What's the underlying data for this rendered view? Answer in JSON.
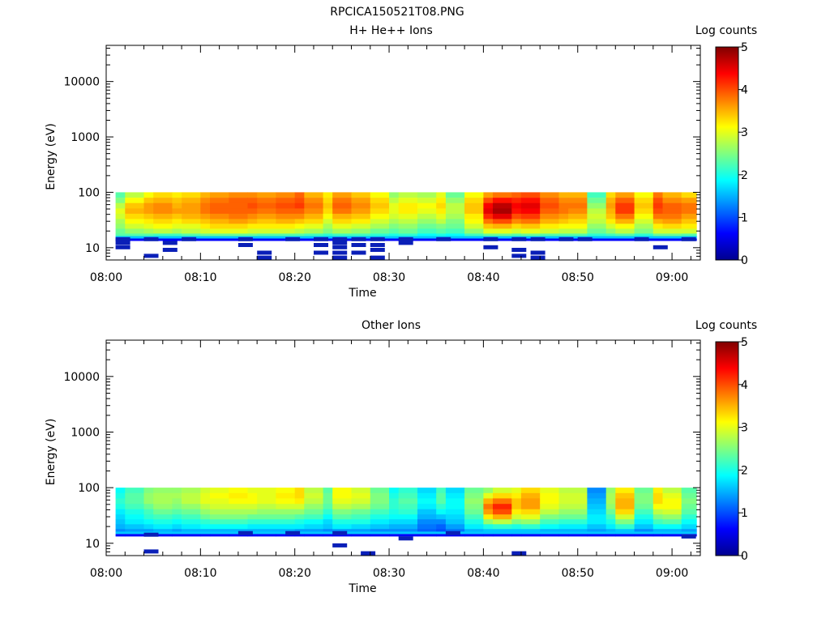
{
  "title": "RPCICA150521T08.PNG",
  "chart_data": [
    {
      "type": "heatmap",
      "title": "H+ He++ Ions",
      "xlabel": "Time",
      "ylabel": "Energy (eV)",
      "y_scale": "log",
      "ylim": [
        6,
        45000
      ],
      "y_ticks": [
        "10",
        "100",
        "1000",
        "10000"
      ],
      "y_tick_values": [
        10,
        100,
        1000,
        10000
      ],
      "xlim": [
        "08:00",
        "09:03"
      ],
      "x_ticks": [
        "08:00",
        "08:10",
        "08:20",
        "08:30",
        "08:40",
        "08:50",
        "09:00"
      ],
      "x_tick_minutes": [
        0,
        10,
        20,
        30,
        40,
        50,
        60
      ],
      "colorbar": {
        "label": "Log counts",
        "range": [
          0,
          5
        ],
        "ticks": [
          "0",
          "1",
          "2",
          "3",
          "4",
          "5"
        ]
      },
      "energy_bands_eV": [
        100,
        80,
        64,
        51,
        41,
        33,
        27,
        22,
        18
      ],
      "time_columns_min": [
        "08:01",
        "08:02",
        "08:04",
        "08:05",
        "08:07",
        "08:08",
        "08:10",
        "08:11",
        "08:13",
        "08:15",
        "08:16",
        "08:18",
        "08:20",
        "08:21",
        "08:23",
        "08:24",
        "08:26",
        "08:28",
        "08:30",
        "08:31",
        "08:33",
        "08:35",
        "08:36",
        "08:38",
        "08:40",
        "08:41",
        "08:43",
        "08:44",
        "08:46",
        "08:48",
        "08:49",
        "08:51",
        "08:53",
        "08:54",
        "08:56",
        "08:58",
        "08:59",
        "09:01"
      ],
      "log_counts": [
        [
          2.3,
          2.5,
          2.8,
          3.0,
          2.9,
          2.7,
          2.6,
          2.4,
          2.3
        ],
        [
          2.8,
          3.1,
          3.4,
          3.5,
          3.3,
          3.1,
          2.9,
          2.6,
          2.3
        ],
        [
          3.1,
          3.4,
          3.6,
          3.6,
          3.4,
          3.2,
          3.0,
          2.7,
          2.3
        ],
        [
          3.3,
          3.5,
          3.7,
          3.7,
          3.5,
          3.3,
          3.1,
          2.8,
          2.2
        ],
        [
          3.2,
          3.4,
          3.5,
          3.6,
          3.4,
          3.2,
          3.0,
          2.7,
          2.2
        ],
        [
          3.3,
          3.5,
          3.6,
          3.6,
          3.5,
          3.3,
          3.0,
          2.8,
          2.3
        ],
        [
          3.5,
          3.7,
          3.8,
          3.8,
          3.6,
          3.4,
          3.2,
          2.9,
          2.4
        ],
        [
          3.6,
          3.8,
          3.9,
          3.9,
          3.7,
          3.5,
          3.3,
          3.0,
          2.4
        ],
        [
          3.7,
          3.9,
          3.9,
          3.9,
          3.8,
          3.6,
          3.3,
          3.0,
          2.4
        ],
        [
          3.7,
          3.9,
          4.0,
          3.9,
          3.7,
          3.5,
          3.2,
          2.9,
          2.4
        ],
        [
          3.6,
          3.8,
          3.9,
          3.8,
          3.6,
          3.4,
          3.2,
          2.9,
          2.3
        ],
        [
          3.7,
          3.9,
          4.0,
          3.9,
          3.7,
          3.5,
          3.2,
          2.9,
          2.3
        ],
        [
          3.9,
          4.0,
          4.1,
          3.9,
          3.7,
          3.4,
          3.1,
          2.8,
          2.3
        ],
        [
          3.5,
          3.7,
          3.8,
          3.7,
          3.5,
          3.3,
          3.0,
          2.7,
          2.2
        ],
        [
          3.2,
          3.3,
          3.4,
          3.3,
          3.1,
          2.9,
          2.7,
          2.5,
          2.1
        ],
        [
          3.6,
          3.8,
          3.9,
          3.8,
          3.5,
          3.3,
          3.0,
          2.7,
          2.2
        ],
        [
          3.4,
          3.6,
          3.7,
          3.6,
          3.4,
          3.2,
          2.9,
          2.6,
          2.2
        ],
        [
          3.1,
          3.3,
          3.4,
          3.3,
          3.1,
          2.9,
          2.7,
          2.4,
          2.1
        ],
        [
          2.6,
          2.8,
          3.0,
          3.0,
          2.9,
          2.7,
          2.5,
          2.3,
          2.0
        ],
        [
          2.8,
          3.0,
          3.2,
          3.2,
          3.0,
          2.8,
          2.6,
          2.4,
          2.1
        ],
        [
          2.7,
          2.9,
          3.1,
          3.0,
          2.8,
          2.6,
          2.4,
          2.2,
          1.9
        ],
        [
          3.0,
          3.2,
          3.3,
          3.2,
          3.0,
          2.8,
          2.5,
          2.3,
          2.0
        ],
        [
          2.4,
          2.6,
          2.8,
          2.8,
          2.7,
          2.5,
          2.4,
          2.2,
          1.9
        ],
        [
          3.1,
          3.3,
          3.4,
          3.4,
          3.2,
          3.1,
          2.9,
          2.6,
          2.2
        ],
        [
          3.6,
          4.0,
          4.4,
          4.5,
          4.2,
          3.8,
          3.4,
          3.0,
          2.4
        ],
        [
          3.8,
          4.3,
          4.7,
          4.8,
          4.5,
          4.0,
          3.5,
          3.0,
          2.4
        ],
        [
          3.9,
          4.2,
          4.4,
          4.3,
          4.0,
          3.7,
          3.3,
          2.9,
          2.3
        ],
        [
          4.0,
          4.3,
          4.5,
          4.4,
          4.1,
          3.8,
          3.4,
          3.0,
          2.4
        ],
        [
          3.7,
          3.9,
          4.0,
          3.9,
          3.7,
          3.5,
          3.2,
          2.9,
          2.3
        ],
        [
          3.5,
          3.7,
          3.8,
          3.8,
          3.6,
          3.4,
          3.1,
          2.8,
          2.3
        ],
        [
          3.5,
          3.7,
          3.8,
          3.7,
          3.5,
          3.3,
          3.1,
          2.8,
          2.3
        ],
        [
          2.2,
          2.4,
          2.6,
          2.8,
          2.9,
          2.8,
          2.6,
          2.4,
          2.1
        ],
        [
          3.3,
          3.5,
          3.6,
          3.5,
          3.4,
          3.2,
          2.9,
          2.6,
          2.2
        ],
        [
          3.6,
          3.9,
          4.1,
          4.1,
          3.8,
          3.5,
          3.1,
          2.8,
          2.3
        ],
        [
          3.1,
          3.3,
          3.4,
          3.3,
          3.1,
          2.9,
          2.7,
          2.5,
          2.1
        ],
        [
          3.8,
          4.0,
          4.1,
          4.0,
          3.8,
          3.5,
          3.2,
          2.9,
          2.4
        ],
        [
          3.5,
          3.7,
          3.9,
          3.9,
          3.8,
          3.6,
          3.3,
          2.9,
          2.4
        ],
        [
          3.3,
          3.6,
          3.8,
          3.8,
          3.6,
          3.4,
          3.2,
          2.9,
          2.3
        ]
      ],
      "low_energy_patches": [
        {
          "t": "08:01",
          "e": [
            14,
            12,
            10
          ]
        },
        {
          "t": "08:04",
          "e": [
            14,
            7
          ]
        },
        {
          "t": "08:06",
          "e": [
            12,
            9
          ]
        },
        {
          "t": "08:08",
          "e": [
            14
          ]
        },
        {
          "t": "08:14",
          "e": [
            14,
            11
          ]
        },
        {
          "t": "08:16",
          "e": [
            8,
            6.5
          ]
        },
        {
          "t": "08:19",
          "e": [
            14
          ]
        },
        {
          "t": "08:22",
          "e": [
            14,
            11,
            8
          ]
        },
        {
          "t": "08:24",
          "e": [
            14,
            12,
            10,
            8,
            6.5
          ]
        },
        {
          "t": "08:26",
          "e": [
            14,
            11,
            8
          ]
        },
        {
          "t": "08:28",
          "e": [
            14,
            11,
            9,
            6.5
          ]
        },
        {
          "t": "08:31",
          "e": [
            14,
            12
          ]
        },
        {
          "t": "08:35",
          "e": [
            14
          ]
        },
        {
          "t": "08:40",
          "e": [
            14,
            10
          ]
        },
        {
          "t": "08:43",
          "e": [
            14,
            9,
            7
          ]
        },
        {
          "t": "08:45",
          "e": [
            14,
            8,
            6.5
          ]
        },
        {
          "t": "08:48",
          "e": [
            14
          ]
        },
        {
          "t": "08:50",
          "e": [
            14
          ]
        },
        {
          "t": "08:56",
          "e": [
            14
          ]
        },
        {
          "t": "08:58",
          "e": [
            10
          ]
        },
        {
          "t": "09:01",
          "e": [
            14
          ]
        }
      ]
    },
    {
      "type": "heatmap",
      "title": "Other Ions",
      "xlabel": "Time",
      "ylabel": "Energy (eV)",
      "y_scale": "log",
      "ylim": [
        6,
        45000
      ],
      "y_ticks": [
        "10",
        "100",
        "1000",
        "10000"
      ],
      "y_tick_values": [
        10,
        100,
        1000,
        10000
      ],
      "xlim": [
        "08:00",
        "09:03"
      ],
      "x_ticks": [
        "08:00",
        "08:10",
        "08:20",
        "08:30",
        "08:40",
        "08:50",
        "09:00"
      ],
      "x_tick_minutes": [
        0,
        10,
        20,
        30,
        40,
        50,
        60
      ],
      "colorbar": {
        "label": "Log counts",
        "range": [
          0,
          5
        ],
        "ticks": [
          "0",
          "1",
          "2",
          "3",
          "4",
          "5"
        ]
      },
      "energy_bands_eV": [
        100,
        80,
        64,
        51,
        41,
        33,
        27,
        22,
        18
      ],
      "time_columns_min": [
        "08:01",
        "08:02",
        "08:04",
        "08:05",
        "08:07",
        "08:08",
        "08:10",
        "08:11",
        "08:13",
        "08:15",
        "08:16",
        "08:18",
        "08:20",
        "08:21",
        "08:23",
        "08:24",
        "08:26",
        "08:28",
        "08:30",
        "08:31",
        "08:33",
        "08:35",
        "08:36",
        "08:38",
        "08:40",
        "08:41",
        "08:43",
        "08:44",
        "08:46",
        "08:48",
        "08:49",
        "08:51",
        "08:53",
        "08:54",
        "08:56",
        "08:58",
        "08:59",
        "09:01"
      ],
      "log_counts": [
        [
          1.9,
          2.0,
          2.1,
          2.0,
          1.8,
          1.7,
          1.6,
          1.5,
          1.3
        ],
        [
          2.2,
          2.3,
          2.3,
          2.2,
          2.0,
          1.9,
          1.8,
          1.6,
          1.4
        ],
        [
          2.5,
          2.6,
          2.6,
          2.4,
          2.2,
          2.1,
          1.9,
          1.7,
          1.4
        ],
        [
          2.6,
          2.7,
          2.7,
          2.6,
          2.4,
          2.2,
          2.0,
          1.8,
          1.5
        ],
        [
          2.6,
          2.7,
          2.6,
          2.5,
          2.3,
          2.1,
          1.9,
          1.7,
          1.4
        ],
        [
          2.7,
          2.8,
          2.8,
          2.6,
          2.4,
          2.2,
          2.0,
          1.8,
          1.5
        ],
        [
          2.9,
          3.0,
          3.0,
          2.8,
          2.6,
          2.4,
          2.1,
          1.9,
          1.5
        ],
        [
          3.0,
          3.1,
          3.0,
          2.9,
          2.7,
          2.5,
          2.2,
          1.9,
          1.5
        ],
        [
          3.1,
          3.2,
          3.1,
          2.9,
          2.7,
          2.5,
          2.2,
          1.9,
          1.5
        ],
        [
          3.0,
          3.1,
          3.1,
          2.9,
          2.7,
          2.4,
          2.1,
          1.8,
          1.5
        ],
        [
          3.0,
          3.0,
          3.0,
          2.8,
          2.6,
          2.4,
          2.1,
          1.8,
          1.5
        ],
        [
          3.1,
          3.2,
          3.1,
          2.9,
          2.6,
          2.4,
          2.1,
          1.8,
          1.5
        ],
        [
          3.3,
          3.3,
          3.2,
          2.9,
          2.6,
          2.3,
          2.0,
          1.8,
          1.4
        ],
        [
          2.8,
          2.9,
          2.8,
          2.6,
          2.4,
          2.2,
          1.9,
          1.7,
          1.4
        ],
        [
          2.3,
          2.4,
          2.4,
          2.3,
          2.1,
          1.9,
          1.7,
          1.6,
          1.3
        ],
        [
          3.1,
          3.1,
          3.0,
          2.8,
          2.5,
          2.3,
          2.0,
          1.8,
          1.4
        ],
        [
          2.9,
          3.0,
          2.9,
          2.7,
          2.4,
          2.2,
          2.0,
          1.7,
          1.4
        ],
        [
          2.4,
          2.5,
          2.5,
          2.4,
          2.2,
          2.0,
          1.8,
          1.6,
          1.3
        ],
        [
          1.9,
          2.0,
          2.1,
          2.1,
          2.0,
          1.9,
          1.7,
          1.5,
          1.3
        ],
        [
          2.1,
          2.2,
          2.3,
          2.2,
          2.1,
          1.9,
          1.7,
          1.5,
          1.3
        ],
        [
          1.7,
          1.8,
          1.9,
          1.8,
          1.6,
          1.5,
          1.3,
          1.2,
          1.1
        ],
        [
          2.2,
          2.3,
          2.3,
          2.1,
          1.9,
          1.6,
          1.3,
          1.1,
          1.0
        ],
        [
          1.7,
          1.8,
          1.9,
          1.9,
          1.8,
          1.7,
          1.6,
          1.4,
          1.2
        ],
        [
          2.4,
          2.5,
          2.6,
          2.5,
          2.4,
          2.2,
          2.0,
          1.8,
          1.5
        ],
        [
          2.6,
          3.0,
          3.5,
          3.8,
          3.6,
          3.2,
          2.6,
          2.0,
          1.6
        ],
        [
          2.9,
          3.3,
          3.8,
          4.2,
          4.0,
          3.5,
          2.8,
          2.1,
          1.6
        ],
        [
          3.0,
          3.2,
          3.4,
          3.4,
          3.2,
          2.9,
          2.5,
          2.0,
          1.6
        ],
        [
          3.3,
          3.5,
          3.6,
          3.6,
          3.3,
          3.0,
          2.6,
          2.1,
          1.6
        ],
        [
          3.0,
          3.1,
          3.1,
          3.0,
          2.8,
          2.5,
          2.2,
          1.9,
          1.5
        ],
        [
          2.8,
          2.9,
          2.9,
          2.8,
          2.6,
          2.4,
          2.1,
          1.8,
          1.5
        ],
        [
          2.8,
          2.9,
          2.9,
          2.8,
          2.6,
          2.4,
          2.1,
          1.8,
          1.5
        ],
        [
          1.3,
          1.4,
          1.5,
          1.6,
          1.7,
          1.8,
          1.8,
          1.6,
          1.4
        ],
        [
          2.6,
          2.7,
          2.7,
          2.6,
          2.4,
          2.2,
          2.0,
          1.8,
          1.5
        ],
        [
          3.2,
          3.4,
          3.5,
          3.5,
          3.3,
          2.9,
          2.5,
          2.1,
          1.6
        ],
        [
          2.4,
          2.5,
          2.5,
          2.4,
          2.2,
          2.0,
          1.8,
          1.6,
          1.3
        ],
        [
          3.2,
          3.3,
          3.3,
          3.1,
          2.8,
          2.5,
          2.2,
          1.9,
          1.5
        ],
        [
          2.8,
          3.0,
          3.1,
          3.1,
          2.9,
          2.6,
          2.3,
          1.9,
          1.5
        ],
        [
          2.3,
          2.4,
          2.5,
          2.4,
          2.3,
          2.1,
          1.9,
          1.7,
          1.4
        ]
      ],
      "low_energy_patches": [
        {
          "t": "08:04",
          "e": [
            14,
            7
          ]
        },
        {
          "t": "08:14",
          "e": [
            15
          ]
        },
        {
          "t": "08:19",
          "e": [
            15
          ]
        },
        {
          "t": "08:24",
          "e": [
            15,
            9
          ]
        },
        {
          "t": "08:27",
          "e": [
            6.5
          ]
        },
        {
          "t": "08:31",
          "e": [
            12
          ]
        },
        {
          "t": "08:36",
          "e": [
            15
          ]
        },
        {
          "t": "08:43",
          "e": [
            6.5
          ]
        },
        {
          "t": "09:01",
          "e": [
            13
          ]
        }
      ]
    }
  ]
}
